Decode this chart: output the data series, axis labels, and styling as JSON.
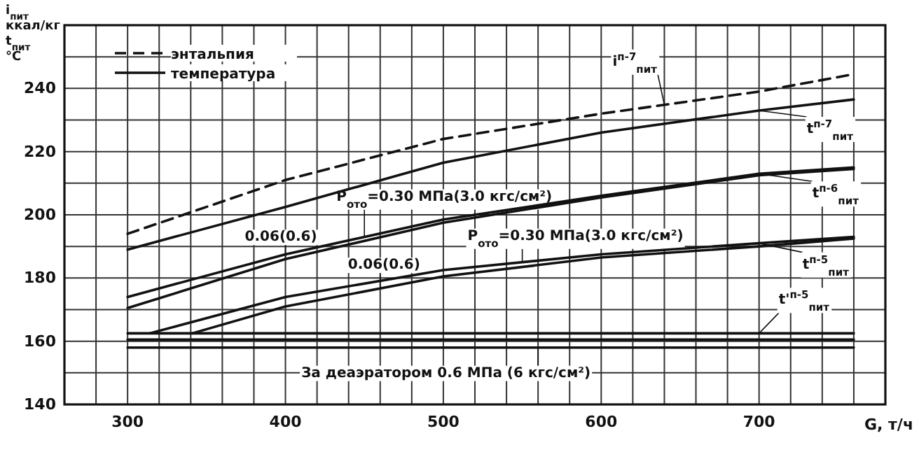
{
  "chart_data": {
    "type": "line",
    "xlabel": "G, т/ч",
    "ylabel": [
      "i$_{пит}$",
      "ккал/кг",
      "t$_{пит}$",
      "°C"
    ],
    "xlim": [
      260,
      780
    ],
    "ylim": [
      140,
      260
    ],
    "xticks": [
      {
        "value": 280,
        "label": null
      },
      300,
      {
        "value": 320,
        "label": null
      },
      {
        "value": 340,
        "label": null
      },
      {
        "value": 360,
        "label": null
      },
      {
        "value": 380,
        "label": null
      },
      400,
      {
        "value": 420,
        "label": null
      },
      {
        "value": 440,
        "label": null
      },
      {
        "value": 460,
        "label": null
      },
      {
        "value": 480,
        "label": null
      },
      500,
      {
        "value": 520,
        "label": null
      },
      {
        "value": 540,
        "label": null
      },
      {
        "value": 560,
        "label": null
      },
      {
        "value": 580,
        "label": null
      },
      600,
      {
        "value": 620,
        "label": null
      },
      {
        "value": 640,
        "label": null
      },
      {
        "value": 660,
        "label": null
      },
      {
        "value": 680,
        "label": null
      },
      700,
      {
        "value": 720,
        "label": null
      },
      {
        "value": 740,
        "label": null
      },
      {
        "value": 760,
        "label": null
      }
    ],
    "yticks": [
      140,
      {
        "value": 150,
        "label": null
      },
      160,
      {
        "value": 170,
        "label": null
      },
      180,
      {
        "value": 190,
        "label": null
      },
      200,
      {
        "value": 210,
        "label": null
      },
      220,
      {
        "value": 230,
        "label": null
      },
      240,
      {
        "value": 250,
        "label": null
      }
    ],
    "grid": true,
    "legend": "top left",
    "marker": "none",
    "series": [
      {
        "name": "энтальпия",
        "color": "#111111",
        "line_style": "dashed",
        "x": [
          300,
          400,
          500,
          600,
          700,
          760
        ],
        "values": [
          194,
          211,
          224,
          232,
          239,
          244.5
        ]
      },
      {
        "name": "температура",
        "color": "#111111",
        "line_style": "solid",
        "x": [
          300,
          400,
          500,
          600,
          700,
          760
        ],
        "values": [
          189,
          202.5,
          216.5,
          226,
          233,
          236.5
        ]
      },
      {
        "color": "#111111",
        "line_style": "solid",
        "x": [
          300,
          400,
          500,
          600,
          700,
          760
        ],
        "values": [
          174,
          187.5,
          198.5,
          206,
          213,
          215
        ]
      },
      {
        "color": "#111111",
        "line_style": "solid",
        "x": [
          300,
          400,
          500,
          600,
          700,
          760
        ],
        "values": [
          170.5,
          186,
          197.5,
          205.5,
          212.5,
          214.5
        ]
      },
      {
        "color": "#111111",
        "line_style": "solid",
        "x": [
          314,
          400,
          500,
          600,
          700,
          760
        ],
        "values": [
          162.5,
          174,
          182.5,
          187.5,
          191,
          193
        ]
      },
      {
        "color": "#111111",
        "line_style": "solid",
        "x": [
          341,
          400,
          500,
          600,
          700,
          760
        ],
        "values": [
          162.5,
          171,
          180.5,
          186.5,
          190,
          192.5
        ]
      },
      {
        "color": "#111111",
        "line_style": "solid",
        "x": [
          300,
          760
        ],
        "values": [
          162.5,
          162.5
        ]
      },
      {
        "color": "#111111",
        "line_style": "solid",
        "x": [
          300,
          760
        ],
        "values": [
          160.5,
          160.5
        ]
      },
      {
        "color": "#111111",
        "line_style": "solid",
        "x": [
          300,
          760
        ],
        "values": [
          158,
          158
        ]
      }
    ],
    "annotations": [
      {
        "text": "i$^{п-7}$$_{пит}$",
        "x": 640,
        "y": 234.8
      },
      {
        "text": "t$^{п-7}$$_{пит}$",
        "x": 700,
        "y": 233
      },
      {
        "text": "t$^{п-6}$$_{пит}$",
        "x": 700,
        "y": 213
      },
      {
        "text": "t$^{п-5}$$_{пит}$",
        "x": 700,
        "y": 191
      },
      {
        "text": "t'$^{п-5}$$_{пит}$",
        "x": 700,
        "y": 162.5
      },
      {
        "text": "P$_{ото}$=0.30 МПа(3.0 кгс/см²)",
        "x": 450,
        "y": 193
      },
      {
        "text": "P$_{ото}$=0.30 МПа(3.0 кгс/см²)",
        "x": 550,
        "y": 185
      },
      {
        "text": "0.06(0.6)",
        "x": 400,
        "y": 186
      },
      {
        "text": "0.06(0.6)",
        "x": 460,
        "y": 176.7
      },
      {
        "text": "За деаэратором 0.6 МПа (6 кгс/см²)",
        "x": 560,
        "y": 158
      }
    ]
  }
}
